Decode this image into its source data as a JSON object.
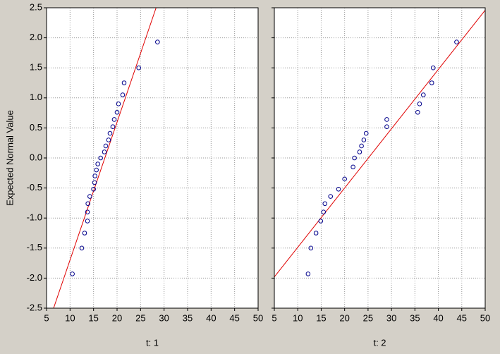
{
  "chart_data": [
    {
      "type": "scatter",
      "y_label": "Expected Normal Value",
      "x_label": "t: 1",
      "x": [
        10.5,
        12.5,
        13.1,
        13.7,
        13.7,
        13.8,
        14.2,
        15.0,
        15.2,
        15.3,
        15.6,
        15.9,
        16.5,
        17.3,
        17.6,
        18.2,
        18.5,
        19.1,
        19.4,
        20.0,
        20.3,
        21.2,
        21.5,
        24.6,
        28.6
      ],
      "y": [
        -1.93,
        -1.5,
        -1.25,
        -1.05,
        -0.9,
        -0.76,
        -0.64,
        -0.52,
        -0.41,
        -0.3,
        -0.2,
        -0.1,
        0,
        0.1,
        0.2,
        0.3,
        0.41,
        0.52,
        0.64,
        0.76,
        0.9,
        1.05,
        1.25,
        1.5,
        1.93
      ],
      "color": "#00008b",
      "fit_line": {
        "x": [
          6.5,
          28.3
        ],
        "y": [
          -2.5,
          2.5
        ],
        "color": "#e00000"
      },
      "xlim": [
        5,
        50
      ],
      "ylim": [
        -2.5,
        2.5
      ],
      "xticks": [
        5,
        10,
        15,
        20,
        25,
        30,
        35,
        40,
        45,
        50
      ],
      "yticks": [
        {
          "value": -2.5,
          "label": "-2.5"
        },
        {
          "value": -2,
          "label": "-2.0"
        },
        {
          "value": -1.5,
          "label": "-1.5"
        },
        {
          "value": -1,
          "label": "-1.0"
        },
        {
          "value": -0.5,
          "label": "-0.5"
        },
        {
          "value": 0,
          "label": "0.0"
        },
        {
          "value": 0.5,
          "label": "0.5"
        },
        {
          "value": 1,
          "label": "1.0"
        },
        {
          "value": 1.5,
          "label": "1.5"
        },
        {
          "value": 2,
          "label": "2.0"
        },
        {
          "value": 2.5,
          "label": "2.5"
        }
      ],
      "grid": true
    },
    {
      "type": "scatter",
      "x_label": "t: 2",
      "x": [
        12.2,
        12.8,
        13.9,
        14.9,
        15.5,
        15.8,
        17.0,
        18.7,
        20.0,
        21.8,
        22.1,
        23.2,
        23.6,
        24.1,
        24.6,
        29.0,
        29.0,
        35.6,
        36.0,
        36.8,
        38.6,
        38.9,
        43.9
      ],
      "y": [
        -1.93,
        -1.5,
        -1.25,
        -1.05,
        -0.9,
        -0.76,
        -0.64,
        -0.52,
        -0.35,
        -0.15,
        0,
        0.1,
        0.2,
        0.3,
        0.41,
        0.52,
        0.64,
        0.76,
        0.9,
        1.05,
        1.25,
        1.5,
        1.93
      ],
      "color": "#00008b",
      "fit_line": {
        "x": [
          5,
          50
        ],
        "y": [
          -1.98,
          2.46
        ],
        "color": "#e00000"
      },
      "xlim": [
        5,
        50
      ],
      "ylim": [
        -2.5,
        2.5
      ],
      "xticks": [
        5,
        10,
        15,
        20,
        25,
        30,
        35,
        40,
        45,
        50
      ],
      "grid": true
    }
  ]
}
